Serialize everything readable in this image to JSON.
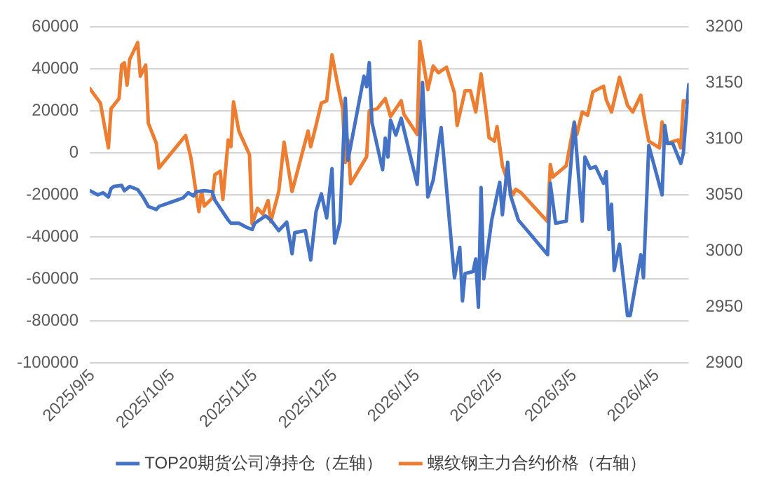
{
  "chart_data": {
    "type": "line",
    "xlim": [
      "2025-09-04",
      "2026-04-17"
    ],
    "xticks": [
      {
        "value": "2025-09-05",
        "label": "2025/9/5"
      },
      {
        "value": "2025-10-05",
        "label": "2025/10/5"
      },
      {
        "value": "2025-11-05",
        "label": "2025/11/5"
      },
      {
        "value": "2025-12-05",
        "label": "2025/12/5"
      },
      {
        "value": "2026-01-05",
        "label": "2026/1/5"
      },
      {
        "value": "2026-02-05",
        "label": "2026/2/5"
      },
      {
        "value": "2026-03-05",
        "label": "2026/3/5"
      },
      {
        "value": "2026-04-05",
        "label": "2026/4/5"
      }
    ],
    "ylim": [
      -100000,
      60000
    ],
    "yticks": [
      -100000,
      -80000,
      -60000,
      -40000,
      -20000,
      0,
      20000,
      40000,
      60000
    ],
    "y2lim": [
      2900,
      3200
    ],
    "y2ticks": [
      2900,
      2950,
      3000,
      3050,
      3100,
      3150,
      3200
    ],
    "grid": "y",
    "legend": "bottom",
    "marker": "none",
    "line_style": "solid",
    "series": [
      {
        "name": "TOP20期货公司净持仓（左轴）",
        "color": "#4472c4",
        "x": [
          "2025-09-04",
          "2025-09-07",
          "2025-09-09",
          "2025-09-11",
          "2025-09-12",
          "2025-09-13",
          "2025-09-16",
          "2025-09-17",
          "2025-09-19",
          "2025-09-22",
          "2025-09-24",
          "2025-09-26",
          "2025-09-29",
          "2025-09-30",
          "2025-10-09",
          "2025-10-11",
          "2025-10-13",
          "2025-10-14",
          "2025-10-17",
          "2025-10-20",
          "2025-10-21",
          "2025-10-26",
          "2025-10-27",
          "2025-10-30",
          "2025-11-02",
          "2025-11-04",
          "2025-11-05",
          "2025-11-09",
          "2025-11-11",
          "2025-11-14",
          "2025-11-17",
          "2025-11-19",
          "2025-11-20",
          "2025-11-24",
          "2025-11-26",
          "2025-11-28",
          "2025-11-30",
          "2025-12-02",
          "2025-12-04",
          "2025-12-05",
          "2025-12-07",
          "2025-12-09",
          "2025-12-10",
          "2025-12-16",
          "2025-12-17",
          "2025-12-18",
          "2025-12-19",
          "2025-12-23",
          "2025-12-24",
          "2025-12-25",
          "2025-12-26",
          "2025-12-28",
          "2025-12-30",
          "2026-01-05",
          "2026-01-06",
          "2026-01-07",
          "2026-01-09",
          "2026-01-11",
          "2026-01-14",
          "2026-01-19",
          "2026-01-21",
          "2026-01-22",
          "2026-01-23",
          "2026-01-26",
          "2026-01-27",
          "2026-01-28",
          "2026-01-29",
          "2026-01-30",
          "2026-02-02",
          "2026-02-05",
          "2026-02-06",
          "2026-02-08",
          "2026-02-09",
          "2026-02-12",
          "2026-02-23",
          "2026-02-24",
          "2026-02-26",
          "2026-03-02",
          "2026-03-05",
          "2026-03-08",
          "2026-03-09",
          "2026-03-11",
          "2026-03-13",
          "2026-03-16",
          "2026-03-17",
          "2026-03-18",
          "2026-03-19",
          "2026-03-20",
          "2026-03-22",
          "2026-03-25",
          "2026-03-26",
          "2026-03-30",
          "2026-03-31",
          "2026-04-02",
          "2026-04-07",
          "2026-04-08",
          "2026-04-09",
          "2026-04-11",
          "2026-04-14",
          "2026-04-15",
          "2026-04-17"
        ],
        "values": [
          -18000,
          -20000,
          -19000,
          -21000,
          -17000,
          -16000,
          -15500,
          -18000,
          -16000,
          -17500,
          -21000,
          -25500,
          -27000,
          -25500,
          -21500,
          -19000,
          -20500,
          -18500,
          -18000,
          -18500,
          -22500,
          -32000,
          -33500,
          -33500,
          -35500,
          -36500,
          -33500,
          -30000,
          -32000,
          -37000,
          -33000,
          -48000,
          -38000,
          -37000,
          -51000,
          -28000,
          -19500,
          -31000,
          -7500,
          -43000,
          -33000,
          26000,
          -3500,
          36500,
          31500,
          43000,
          14500,
          -8000,
          7000,
          -2000,
          15500,
          8500,
          16500,
          -15000,
          6500,
          33500,
          -21000,
          -13000,
          12000,
          -59500,
          -45000,
          -70500,
          -57500,
          -56500,
          -50500,
          -73500,
          -16500,
          -60000,
          -32000,
          -14000,
          -29500,
          -4500,
          -20000,
          -32000,
          -48500,
          -14500,
          -33500,
          -32500,
          14500,
          -32500,
          -2000,
          -7500,
          -6500,
          -14500,
          -9000,
          -36500,
          -24500,
          -56000,
          -43500,
          -77500,
          -77500,
          -48500,
          -59500,
          3500,
          -20000,
          13000,
          4500,
          4500,
          -5000,
          0,
          32500
        ]
      },
      {
        "name": "螺纹钢主力合约价格（右轴）",
        "color": "#ed7d31",
        "axis": "y2",
        "x": [
          "2025-09-04",
          "2025-09-08",
          "2025-09-11",
          "2025-09-12",
          "2025-09-15",
          "2025-09-16",
          "2025-09-17",
          "2025-09-18",
          "2025-09-19",
          "2025-09-22",
          "2025-09-23",
          "2025-09-25",
          "2025-09-26",
          "2025-09-29",
          "2025-09-30",
          "2025-10-10",
          "2025-10-12",
          "2025-10-15",
          "2025-10-16",
          "2025-10-17",
          "2025-10-20",
          "2025-10-21",
          "2025-10-23",
          "2025-10-24",
          "2025-10-26",
          "2025-10-27",
          "2025-10-28",
          "2025-10-30",
          "2025-11-03",
          "2025-11-04",
          "2025-11-06",
          "2025-11-08",
          "2025-11-10",
          "2025-11-11",
          "2025-11-14",
          "2025-11-16",
          "2025-11-19",
          "2025-11-25",
          "2025-11-26",
          "2025-11-28",
          "2025-11-30",
          "2025-12-02",
          "2025-12-04",
          "2025-12-06",
          "2025-12-08",
          "2025-12-09",
          "2025-12-10",
          "2025-12-11",
          "2025-12-17",
          "2025-12-18",
          "2025-12-21",
          "2025-12-24",
          "2025-12-26",
          "2025-12-30",
          "2025-12-31",
          "2026-01-05",
          "2026-01-06",
          "2026-01-09",
          "2026-01-11",
          "2026-01-13",
          "2026-01-16",
          "2026-01-19",
          "2026-01-20",
          "2026-01-23",
          "2026-01-25",
          "2026-01-27",
          "2026-01-29",
          "2026-01-31",
          "2026-02-01",
          "2026-02-03",
          "2026-02-04",
          "2026-02-06",
          "2026-02-09",
          "2026-02-10",
          "2026-02-11",
          "2026-02-13",
          "2026-02-23",
          "2026-02-24",
          "2026-02-25",
          "2026-03-02",
          "2026-03-05",
          "2026-03-06",
          "2026-03-08",
          "2026-03-10",
          "2026-03-12",
          "2026-03-16",
          "2026-03-17",
          "2026-03-19",
          "2026-03-22",
          "2026-03-25",
          "2026-03-27",
          "2026-03-30",
          "2026-03-31",
          "2026-04-02",
          "2026-04-06",
          "2026-04-07",
          "2026-04-09",
          "2026-04-13",
          "2026-04-14",
          "2026-04-15",
          "2026-04-17"
        ],
        "values": [
          3145,
          3132,
          3092,
          3127,
          3136,
          3166,
          3168,
          3148,
          3171,
          3186,
          3156,
          3166,
          3114,
          3096,
          3074,
          3103,
          3083,
          3035,
          3053,
          3040,
          3047,
          3068,
          3071,
          3046,
          3099,
          3093,
          3133,
          3107,
          3086,
          3024,
          3038,
          3033,
          3045,
          3026,
          3053,
          3097,
          3053,
          3107,
          3093,
          3112,
          3132,
          3134,
          3175,
          3150,
          3127,
          3079,
          3099,
          3060,
          3084,
          3125,
          3127,
          3136,
          3120,
          3134,
          3122,
          3104,
          3187,
          3144,
          3165,
          3159,
          3164,
          3141,
          3112,
          3143,
          3143,
          3124,
          3158,
          3122,
          3101,
          3098,
          3111,
          3076,
          3055,
          3050,
          3055,
          3052,
          3026,
          3077,
          3066,
          3076,
          3115,
          3104,
          3124,
          3121,
          3142,
          3147,
          3135,
          3124,
          3155,
          3130,
          3124,
          3139,
          3123,
          3098,
          3092,
          3115,
          3096,
          3099,
          3092,
          3134,
          3133
        ]
      }
    ]
  }
}
